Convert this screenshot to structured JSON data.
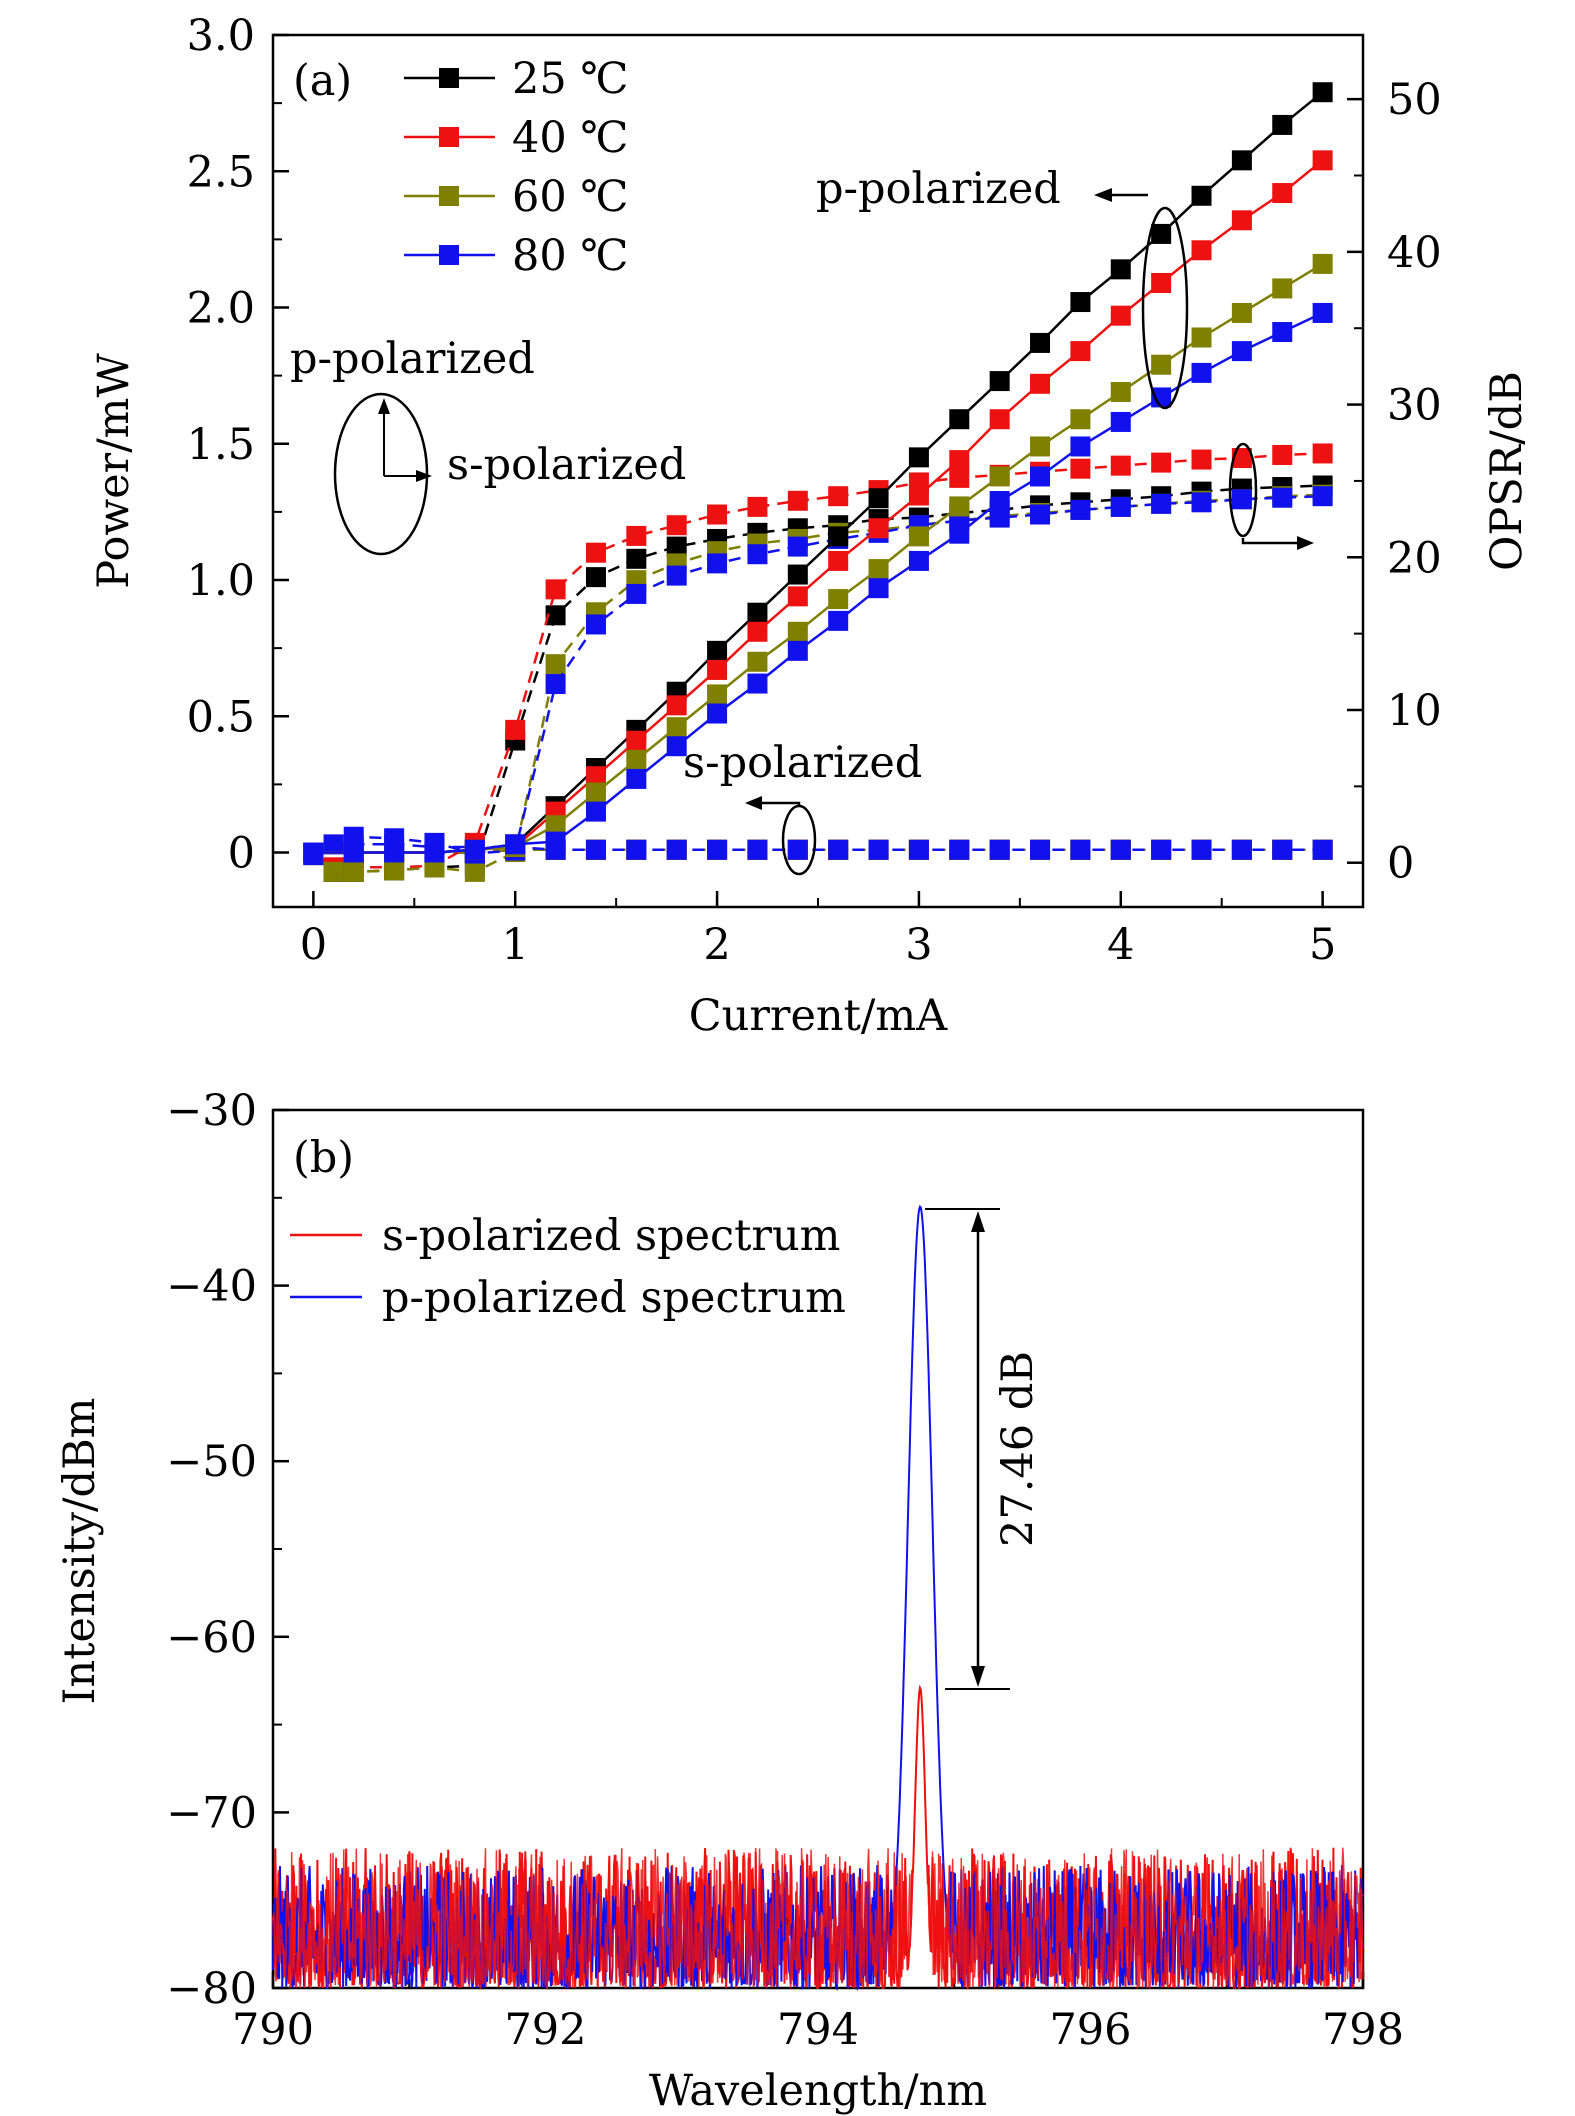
{
  "chart_data": [
    {
      "panel_label": "(a)",
      "type": "line",
      "xlabel": "Current/mA",
      "ylabel_left": "Power/mW",
      "ylabel_right": "OPSR/dB",
      "xlim": [
        -0.2,
        5.2
      ],
      "ylim_left": [
        -0.2,
        3.0
      ],
      "ylim_right": [
        -2.9,
        54.2
      ],
      "x_ticks": [
        "0",
        "1",
        "2",
        "3",
        "4",
        "5"
      ],
      "y_ticks_left": [
        "0",
        "0.5",
        "1.0",
        "1.5",
        "2.0",
        "2.5",
        "3.0"
      ],
      "y_ticks_right": [
        "0",
        "10",
        "20",
        "30",
        "40",
        "50"
      ],
      "legend": [
        "25 ℃",
        "40 ℃",
        "60 ℃",
        "80 ℃"
      ],
      "legend_placement": "top-left",
      "colors": [
        "#000000",
        "#ee1111",
        "#7f7f00",
        "#1111ee"
      ],
      "annotations": {
        "p_polarized_upper": "p-polarized",
        "p_polarized_left": "p-polarized",
        "s_polarized_left": "s-polarized",
        "s_polarized_lower": "s-polarized"
      },
      "power_p": {
        "x": [
          0,
          0.2,
          0.4,
          0.6,
          0.8,
          1.0,
          1.2,
          1.4,
          1.6,
          1.8,
          2.0,
          2.2,
          2.4,
          2.6,
          2.8,
          3.0,
          3.2,
          3.4,
          3.6,
          3.8,
          4.0,
          4.2,
          4.4,
          4.6,
          4.8,
          5.0
        ],
        "series": [
          {
            "name": "25 ℃",
            "values": [
              0,
              0,
              0,
              0,
              0.01,
              0.03,
              0.17,
              0.31,
              0.45,
              0.59,
              0.74,
              0.88,
              1.02,
              1.16,
              1.3,
              1.45,
              1.59,
              1.73,
              1.87,
              2.02,
              2.14,
              2.27,
              2.41,
              2.54,
              2.67,
              2.79
            ]
          },
          {
            "name": "40 ℃",
            "values": [
              0,
              0,
              0,
              0,
              0.01,
              0.02,
              0.15,
              0.28,
              0.41,
              0.54,
              0.67,
              0.81,
              0.94,
              1.07,
              1.19,
              1.31,
              1.44,
              1.59,
              1.72,
              1.84,
              1.97,
              2.09,
              2.21,
              2.32,
              2.42,
              2.54
            ]
          },
          {
            "name": "60 ℃",
            "values": [
              0,
              0,
              0,
              0,
              0.01,
              0.02,
              0.1,
              0.22,
              0.34,
              0.46,
              0.58,
              0.7,
              0.81,
              0.93,
              1.04,
              1.16,
              1.27,
              1.38,
              1.49,
              1.59,
              1.69,
              1.79,
              1.89,
              1.98,
              2.07,
              2.16
            ]
          },
          {
            "name": "80 ℃",
            "values": [
              0,
              0,
              0,
              0,
              0.01,
              0.03,
              0.04,
              0.15,
              0.27,
              0.39,
              0.51,
              0.62,
              0.74,
              0.85,
              0.97,
              1.07,
              1.17,
              1.29,
              1.38,
              1.49,
              1.58,
              1.67,
              1.76,
              1.84,
              1.91,
              1.98
            ]
          }
        ]
      },
      "power_s": {
        "x": [
          0,
          0.2,
          0.4,
          0.6,
          0.8,
          1.0,
          1.2,
          1.4,
          1.6,
          1.8,
          2.0,
          2.2,
          2.4,
          2.6,
          2.8,
          3.0,
          3.2,
          3.4,
          3.6,
          3.8,
          4.0,
          4.2,
          4.4,
          4.6,
          4.8,
          5.0
        ],
        "series": [
          {
            "name": "25 ℃",
            "values": [
              0,
              0,
              0,
              0,
              0,
              0.01,
              0.01,
              0.01,
              0.01,
              0.01,
              0.01,
              0.01,
              0.01,
              0.01,
              0.01,
              0.01,
              0.01,
              0.01,
              0.01,
              0.01,
              0.01,
              0.01,
              0.01,
              0.01,
              0.01,
              0.01
            ]
          },
          {
            "name": "40 ℃",
            "values": [
              0,
              0,
              0,
              0,
              0,
              0.01,
              0.01,
              0.01,
              0.01,
              0.01,
              0.01,
              0.01,
              0.01,
              0.01,
              0.01,
              0.01,
              0.01,
              0.01,
              0.01,
              0.01,
              0.01,
              0.01,
              0.01,
              0.01,
              0.01,
              0.01
            ]
          },
          {
            "name": "60 ℃",
            "values": [
              0,
              0,
              0,
              0,
              0,
              0.01,
              0.01,
              0.01,
              0.01,
              0.01,
              0.01,
              0.01,
              0.01,
              0.01,
              0.01,
              0.01,
              0.01,
              0.01,
              0.01,
              0.01,
              0.01,
              0.01,
              0.01,
              0.01,
              0.01,
              0.01
            ]
          },
          {
            "name": "80 ℃",
            "values": [
              0,
              0.03,
              0.03,
              0.02,
              0.02,
              0.02,
              0.01,
              0.01,
              0.01,
              0.01,
              0.01,
              0.01,
              0.01,
              0.01,
              0.01,
              0.01,
              0.01,
              0.01,
              0.01,
              0.01,
              0.01,
              0.01,
              0.01,
              0.01,
              0.01,
              0.01
            ]
          }
        ]
      },
      "opsr": {
        "x": [
          0,
          0.1,
          0.2,
          0.4,
          0.6,
          0.8,
          1.0,
          1.2,
          1.4,
          1.6,
          1.8,
          2.0,
          2.2,
          2.4,
          2.6,
          2.8,
          3.0,
          3.2,
          3.4,
          3.6,
          3.8,
          4.0,
          4.2,
          4.4,
          4.6,
          4.8,
          5.0
        ],
        "series": [
          {
            "name": "25 ℃",
            "values": [
              0.5,
              -0.6,
              -0.6,
              -0.5,
              -0.3,
              -0.2,
              8.0,
              16.2,
              18.7,
              19.9,
              20.7,
              21.2,
              21.6,
              21.9,
              22.1,
              22.5,
              22.6,
              22.9,
              23.1,
              23.4,
              23.6,
              23.8,
              24.0,
              24.3,
              24.5,
              24.6,
              24.7
            ]
          },
          {
            "name": "40 ℃",
            "values": [
              0.5,
              -0.3,
              -0.3,
              -0.3,
              -0.2,
              1.3,
              8.7,
              17.9,
              20.3,
              21.4,
              22.1,
              22.8,
              23.3,
              23.7,
              24.0,
              24.4,
              24.9,
              25.2,
              25.4,
              25.6,
              25.8,
              26.0,
              26.2,
              26.4,
              26.5,
              26.7,
              26.8
            ]
          },
          {
            "name": "60 ℃",
            "values": [
              0.5,
              -0.6,
              -0.6,
              -0.5,
              -0.3,
              -0.6,
              0.7,
              13.0,
              16.4,
              18.5,
              19.6,
              20.4,
              20.9,
              21.2,
              21.6,
              21.8,
              22.1,
              22.4,
              22.7,
              22.9,
              23.1,
              23.3,
              23.5,
              23.7,
              23.8,
              24.0,
              24.1
            ]
          },
          {
            "name": "80 ℃",
            "values": [
              0.5,
              1.2,
              1.7,
              1.6,
              1.3,
              0.6,
              0.8,
              11.7,
              15.6,
              17.6,
              18.8,
              19.6,
              20.2,
              20.7,
              21.2,
              21.6,
              22.1,
              22.4,
              22.6,
              22.8,
              23.1,
              23.3,
              23.5,
              23.6,
              23.8,
              23.9,
              24.0
            ]
          }
        ]
      }
    },
    {
      "panel_label": "(b)",
      "type": "line",
      "xlabel": "Wavelength/nm",
      "ylabel": "Intensity/dBm",
      "xlim": [
        790,
        798
      ],
      "ylim": [
        -80,
        -30
      ],
      "x_ticks": [
        "790",
        "792",
        "794",
        "796",
        "798"
      ],
      "y_ticks": [
        "−30",
        "−40",
        "−50",
        "−60",
        "−70",
        "−80"
      ],
      "legend_placement": "top-left",
      "series": [
        {
          "name": "s-polarized spectrum",
          "color": "#ee1111",
          "noise_floor": -80,
          "noise_max": -72,
          "peak_wavelength": 794.75,
          "peak_value": -62.9
        },
        {
          "name": "p-polarized spectrum",
          "color": "#1111ee",
          "noise_floor": -80,
          "noise_max": -73,
          "peak_wavelength": 794.75,
          "peak_value": -35.5
        }
      ],
      "annotation": "27.46 dB"
    }
  ]
}
